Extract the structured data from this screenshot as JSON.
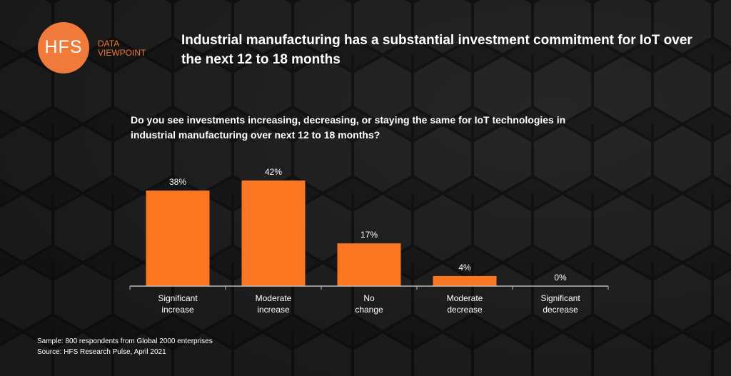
{
  "header": {
    "logo_text": "HFS",
    "logo_sub_1": "DATA",
    "logo_sub_2": "VIEWPOINT",
    "title": "Industrial manufacturing has a substantial investment commitment for IoT over the next 12 to 18 months"
  },
  "colors": {
    "bar": "#fb7620",
    "accent": "#f07a3a",
    "background": "#1c1c1c"
  },
  "chart_data": {
    "type": "bar",
    "title": "Do you see investments increasing, decreasing, or staying the same for IoT technologies in industrial manufacturing over next 12 to 18 months?",
    "categories": [
      [
        "Significant",
        "increase"
      ],
      [
        "Moderate",
        "increase"
      ],
      [
        "No",
        "change"
      ],
      [
        "Moderate",
        "decrease"
      ],
      [
        "Significant",
        "decrease"
      ]
    ],
    "values": [
      38,
      42,
      17,
      4,
      0
    ],
    "data_labels": [
      "38%",
      "42%",
      "17%",
      "4%",
      "0%"
    ],
    "ylim": [
      0,
      42
    ],
    "grid": false
  },
  "footer": {
    "sample": "Sample: 800 respondents from Global 2000 enterprises",
    "source": "Source: HFS Research Pulse, April 2021"
  }
}
